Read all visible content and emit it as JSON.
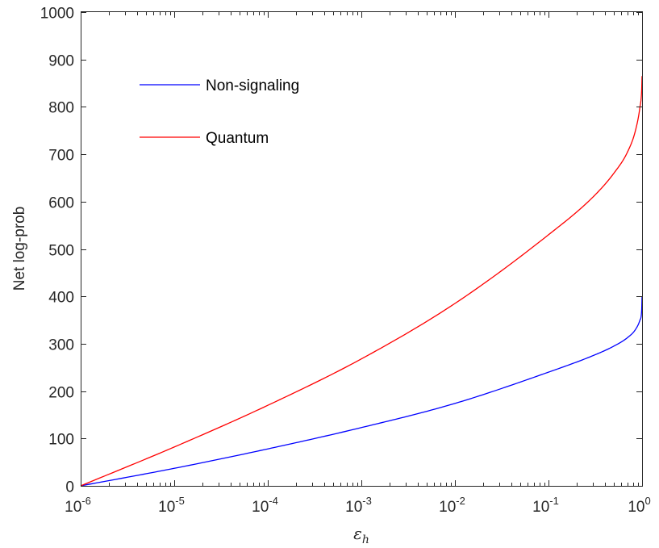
{
  "chart_data": {
    "type": "line",
    "x_scale": "log",
    "xlim": [
      1e-06,
      1
    ],
    "ylim": [
      0,
      1000
    ],
    "xlabel": "ε",
    "xlabel_sub": "h",
    "ylabel": "Net log-prob",
    "grid": false,
    "legend_position": "top-left",
    "x_ticks": [
      {
        "base": "10",
        "exp": "-6",
        "value": 1e-06
      },
      {
        "base": "10",
        "exp": "-5",
        "value": 1e-05
      },
      {
        "base": "10",
        "exp": "-4",
        "value": 0.0001
      },
      {
        "base": "10",
        "exp": "-3",
        "value": 0.001
      },
      {
        "base": "10",
        "exp": "-2",
        "value": 0.01
      },
      {
        "base": "10",
        "exp": "-1",
        "value": 0.1
      },
      {
        "base": "10",
        "exp": "0",
        "value": 1
      }
    ],
    "y_ticks": [
      "0",
      "100",
      "200",
      "300",
      "400",
      "500",
      "600",
      "700",
      "800",
      "900",
      "1000"
    ],
    "series": [
      {
        "name": "Non-signaling",
        "color": "#0000ff",
        "x": [
          1e-06,
          1e-05,
          0.0001,
          0.001,
          0.01,
          0.1,
          0.3,
          0.5,
          0.7,
          0.85,
          0.95,
          0.99,
          1
        ],
        "y": [
          0,
          37,
          78,
          123,
          174,
          240,
          275,
          295,
          313,
          330,
          350,
          370,
          400
        ]
      },
      {
        "name": "Quantum",
        "color": "#ff0000",
        "x": [
          1e-06,
          1e-05,
          0.0001,
          0.001,
          0.01,
          0.1,
          0.3,
          0.5,
          0.7,
          0.85,
          0.95,
          0.99,
          1
        ],
        "y": [
          0,
          82,
          170,
          268,
          385,
          530,
          610,
          660,
          705,
          750,
          800,
          835,
          865
        ]
      }
    ]
  }
}
